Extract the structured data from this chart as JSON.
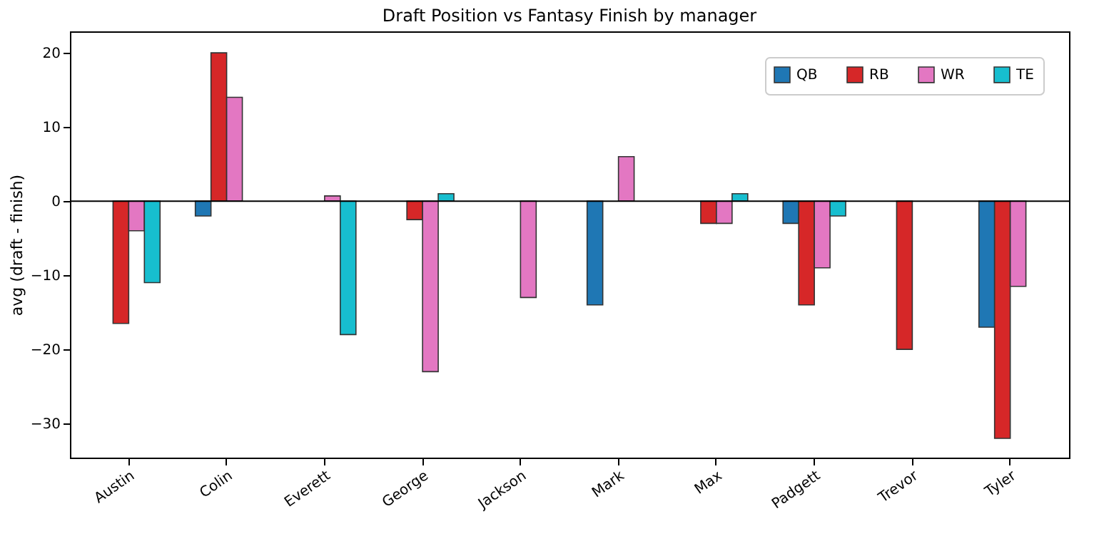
{
  "chart_data": {
    "type": "bar",
    "title": "Draft Position vs Fantasy Finish by manager",
    "ylabel": "avg (draft - finish)",
    "categories": [
      "Austin",
      "Colin",
      "Everett",
      "George",
      "Jackson",
      "Mark",
      "Max",
      "Padgett",
      "Trevor",
      "Tyler"
    ],
    "series": [
      {
        "name": "QB",
        "color": "#1f77b4",
        "values": [
          null,
          -2,
          null,
          null,
          null,
          -14,
          null,
          -3,
          null,
          -17
        ]
      },
      {
        "name": "RB",
        "color": "#d62728",
        "values": [
          -16.5,
          20,
          null,
          -2.5,
          null,
          null,
          -3,
          -14,
          -20,
          -32
        ]
      },
      {
        "name": "WR",
        "color": "#e377c2",
        "values": [
          -4,
          14,
          0.7,
          -23,
          -13,
          6,
          -3,
          -9,
          null,
          -11.5
        ]
      },
      {
        "name": "TE",
        "color": "#17becf",
        "values": [
          -11,
          null,
          -18,
          1,
          null,
          null,
          1,
          -2,
          null,
          null
        ]
      }
    ],
    "ylim": [
      -34.6,
      22.9
    ],
    "yticks": [
      -30,
      -20,
      -10,
      0,
      10,
      20
    ],
    "grid": false,
    "legend": "top right",
    "ref_lines": [
      {
        "axis": "y",
        "value": 0,
        "color": "#000000"
      }
    ]
  }
}
